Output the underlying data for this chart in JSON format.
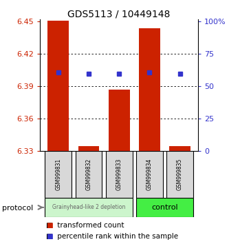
{
  "title": "GDS5113 / 10449148",
  "samples": [
    "GSM999831",
    "GSM999832",
    "GSM999833",
    "GSM999834",
    "GSM999835"
  ],
  "bar_tops": [
    6.451,
    6.335,
    6.387,
    6.444,
    6.335
  ],
  "bar_bottoms": [
    6.33,
    6.33,
    6.33,
    6.33,
    6.33
  ],
  "percentile_values": [
    6.403,
    6.402,
    6.402,
    6.403,
    6.402
  ],
  "ylim": [
    6.33,
    6.452
  ],
  "y_ticks_left": [
    6.33,
    6.36,
    6.39,
    6.42,
    6.45
  ],
  "y_ticks_right_labels": [
    "0",
    "25",
    "50",
    "75",
    "100%"
  ],
  "right_tick_vals": [
    6.33,
    6.36,
    6.39,
    6.42,
    6.45
  ],
  "bar_color": "#cc2200",
  "dot_color": "#3333cc",
  "background_color": "#ffffff",
  "plot_bg": "#ffffff",
  "group1_color": "#ccf5cc",
  "group2_color": "#44ee44",
  "group1_label": "Grainyhead-like 2 depletion",
  "group2_label": "control",
  "group1_samples": [
    0,
    1,
    2
  ],
  "group2_samples": [
    3,
    4
  ],
  "protocol_label": "protocol",
  "legend_red_label": "transformed count",
  "legend_blue_label": "percentile rank within the sample",
  "left_tick_color": "#cc2200",
  "right_tick_color": "#3333cc",
  "bar_width": 0.7
}
